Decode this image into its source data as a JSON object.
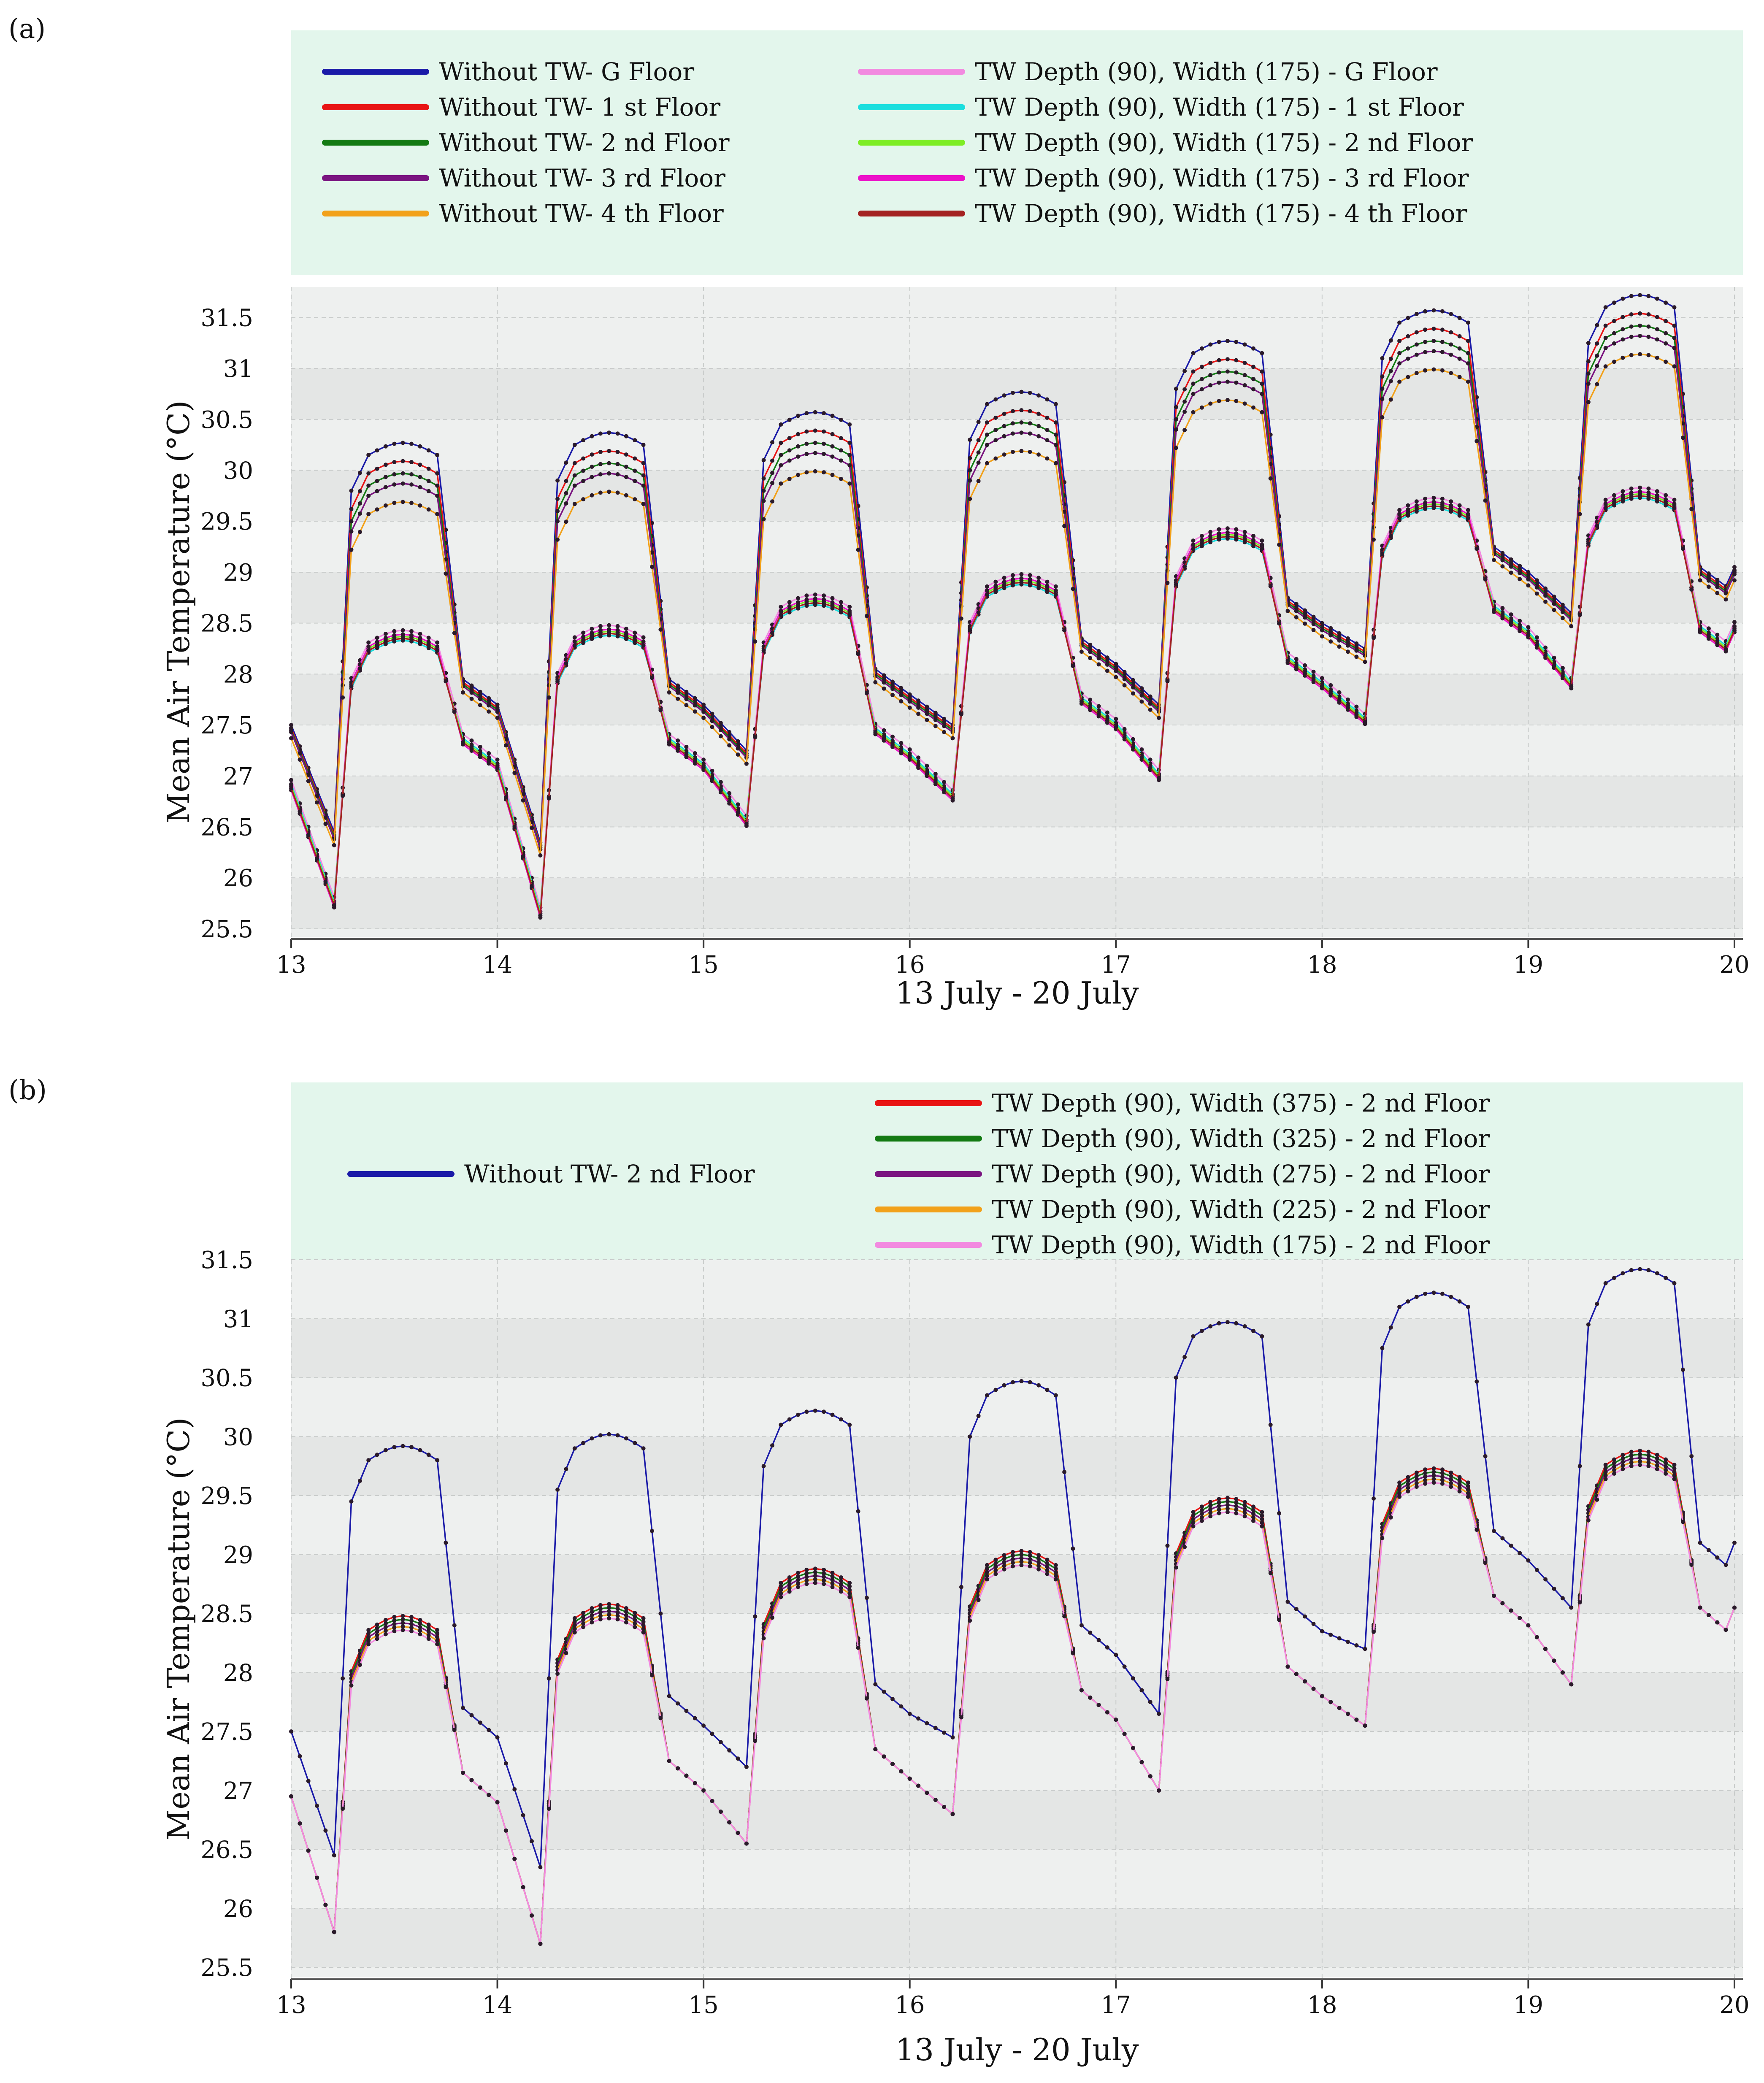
{
  "figure": {
    "panel_labels": [
      "(a)",
      "(b)"
    ],
    "legend_bg": "#e3f6ec",
    "plot_bg": "#eef0ef"
  },
  "chart_data": [
    {
      "type": "line",
      "panel": "(a)",
      "title": "",
      "xlabel": "13 July - 20 July",
      "ylabel": "Mean Air Temperature (°C)",
      "xlim": [
        13,
        20
      ],
      "ylim": [
        25.4,
        31.8
      ],
      "xticks": [
        13,
        14,
        15,
        16,
        17,
        18,
        19,
        20
      ],
      "yticks": [
        25.5,
        26,
        26.5,
        27,
        27.5,
        28,
        28.5,
        29,
        29.5,
        30,
        30.5,
        31,
        31.5
      ],
      "ytick_labels": [
        "25.5",
        "26",
        "26.5",
        "27",
        "27.5",
        "28",
        "28.5",
        "29",
        "29.5",
        "30",
        "30.5",
        "31",
        "31.5"
      ],
      "grid": true,
      "legend_placement": "top",
      "series": [
        {
          "name": "Without TW- G Floor",
          "color": "#1a1aa8",
          "group": "without",
          "peak_offset": 0.3,
          "base_offset": 0.05
        },
        {
          "name": "Without TW- 1 st Floor",
          "color": "#e81414",
          "group": "without",
          "peak_offset": 0.12,
          "base_offset": 0.02
        },
        {
          "name": "Without TW- 2 nd Floor",
          "color": "#137a13",
          "group": "without",
          "peak_offset": 0.0,
          "base_offset": 0.0
        },
        {
          "name": "Without TW- 3 rd Floor",
          "color": "#7a1480",
          "group": "without",
          "peak_offset": -0.1,
          "base_offset": -0.02
        },
        {
          "name": "Without TW- 4 th Floor",
          "color": "#f2a11a",
          "group": "without",
          "peak_offset": -0.28,
          "base_offset": -0.08
        },
        {
          "name": "TW Depth (90), Width (175) - G Floor",
          "color": "#f28ae0",
          "group": "tw",
          "peak_offset": 0.06,
          "base_offset": 0.06
        },
        {
          "name": "TW Depth (90), Width (175) - 1 st Floor",
          "color": "#1adede",
          "group": "tw",
          "peak_offset": -0.04,
          "base_offset": 0.02
        },
        {
          "name": "TW Depth (90), Width (175) - 2 nd Floor",
          "color": "#7ded24",
          "group": "tw",
          "peak_offset": 0.0,
          "base_offset": 0.0
        },
        {
          "name": "TW Depth (90), Width (175) - 3 rd Floor",
          "color": "#ec12c9",
          "group": "tw",
          "peak_offset": 0.02,
          "base_offset": -0.04
        },
        {
          "name": "TW Depth (90), Width (175) - 4 th Floor",
          "color": "#a42322",
          "group": "tw",
          "peak_offset": -0.02,
          "base_offset": -0.02
        }
      ],
      "reference_profile": {
        "description": "daily cycle: night trough then daytime plateau",
        "days": [
          {
            "day": 13,
            "trough": 26.4,
            "plateau": 29.85,
            "evening": 27.9,
            "tw_plateau": 28.25
          },
          {
            "day": 14,
            "trough": 26.3,
            "plateau": 29.95,
            "evening": 27.9,
            "tw_plateau": 28.3
          },
          {
            "day": 15,
            "trough": 27.2,
            "plateau": 30.15,
            "evening": 28.0,
            "tw_plateau": 28.6
          },
          {
            "day": 16,
            "trough": 27.45,
            "plateau": 30.35,
            "evening": 28.3,
            "tw_plateau": 28.8
          },
          {
            "day": 17,
            "trough": 27.65,
            "plateau": 30.85,
            "evening": 28.7,
            "tw_plateau": 29.25
          },
          {
            "day": 18,
            "trough": 28.2,
            "plateau": 31.15,
            "evening": 29.2,
            "tw_plateau": 29.55
          },
          {
            "day": 19,
            "trough": 28.55,
            "plateau": 31.3,
            "evening": 29.0,
            "tw_plateau": 29.65
          }
        ]
      }
    },
    {
      "type": "line",
      "panel": "(b)",
      "title": "",
      "xlabel": "13 July - 20 July",
      "ylabel": "Mean Air Temperature (°C)",
      "xlim": [
        13,
        20
      ],
      "ylim": [
        25.4,
        31.5
      ],
      "xticks": [
        13,
        14,
        15,
        16,
        17,
        18,
        19,
        20
      ],
      "yticks": [
        25.5,
        26,
        26.5,
        27,
        27.5,
        28,
        28.5,
        29,
        29.5,
        30,
        30.5,
        31,
        31.5
      ],
      "ytick_labels": [
        "25.5",
        "26",
        "26.5",
        "27",
        "27.5",
        "28",
        "28.5",
        "29",
        "29.5",
        "30",
        "30.5",
        "31",
        "31.5"
      ],
      "grid": true,
      "legend_placement": "top",
      "series": [
        {
          "name": "Without TW- 2 nd Floor",
          "color": "#1a1aa8",
          "group": "without",
          "peak_offset": 0.0,
          "base_offset": 0.0
        },
        {
          "name": "TW Depth (90), Width (375) - 2 nd Floor",
          "color": "#e81414",
          "group": "tw",
          "peak_offset": 0.06,
          "base_offset": 0.0
        },
        {
          "name": "TW Depth (90), Width (325) - 2 nd Floor",
          "color": "#137a13",
          "group": "tw",
          "peak_offset": 0.03,
          "base_offset": 0.0
        },
        {
          "name": "TW Depth (90), Width (275) - 2 nd Floor",
          "color": "#7a1480",
          "group": "tw",
          "peak_offset": 0.0,
          "base_offset": 0.0
        },
        {
          "name": "TW Depth (90), Width (225) - 2 nd Floor",
          "color": "#f2a11a",
          "group": "tw",
          "peak_offset": -0.03,
          "base_offset": 0.0
        },
        {
          "name": "TW Depth (90), Width (175) -  2 nd Floor",
          "color": "#f28ae0",
          "group": "tw",
          "peak_offset": -0.06,
          "base_offset": 0.0
        }
      ],
      "reference_profile": {
        "description": "daily cycle: night trough then daytime plateau",
        "days": [
          {
            "day": 13,
            "trough": 26.45,
            "plateau": 29.8,
            "evening": 27.7,
            "tw_plateau": 28.3
          },
          {
            "day": 14,
            "trough": 26.35,
            "plateau": 29.9,
            "evening": 27.8,
            "tw_plateau": 28.4
          },
          {
            "day": 15,
            "trough": 27.2,
            "plateau": 30.1,
            "evening": 27.9,
            "tw_plateau": 28.7
          },
          {
            "day": 16,
            "trough": 27.45,
            "plateau": 30.35,
            "evening": 28.4,
            "tw_plateau": 28.85
          },
          {
            "day": 17,
            "trough": 27.65,
            "plateau": 30.85,
            "evening": 28.6,
            "tw_plateau": 29.3
          },
          {
            "day": 18,
            "trough": 28.2,
            "plateau": 31.1,
            "evening": 29.2,
            "tw_plateau": 29.55
          },
          {
            "day": 19,
            "trough": 28.55,
            "plateau": 31.3,
            "evening": 29.1,
            "tw_plateau": 29.7
          }
        ]
      }
    }
  ]
}
